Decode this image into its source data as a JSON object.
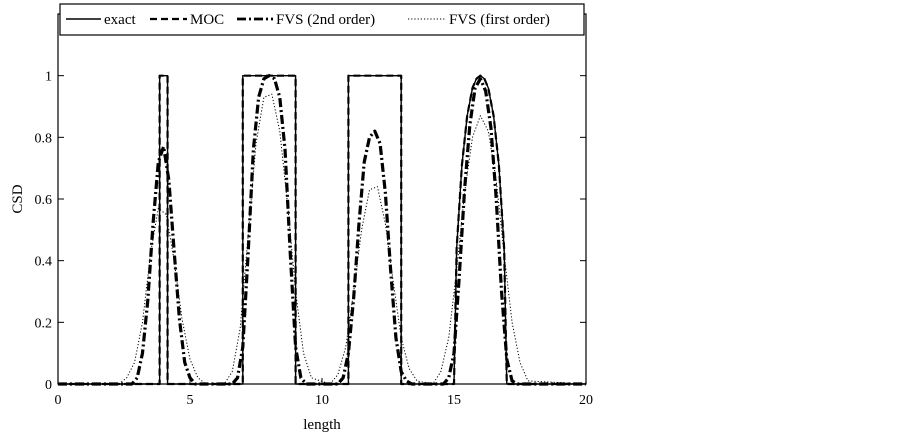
{
  "chart_data": {
    "type": "line",
    "title": "",
    "xlabel": "length",
    "ylabel": "CSD",
    "xlim": [
      0,
      20
    ],
    "ylim": [
      0,
      1.2
    ],
    "xticks": [
      0,
      5,
      10,
      15,
      20
    ],
    "yticks": [
      0,
      0.2,
      0.4,
      0.6,
      0.8,
      1
    ],
    "xtick_labels": [
      "0",
      "5",
      "10",
      "15",
      "20"
    ],
    "ytick_labels": [
      "0",
      "0.2",
      "0.4",
      "0.6",
      "0.8",
      "1"
    ],
    "legend_position": "top",
    "grid": false,
    "series": [
      {
        "name": "exact",
        "style": "solid",
        "x": [
          0,
          3.85,
          3.85,
          4.15,
          4.15,
          7.0,
          7.0,
          9.0,
          9.0,
          11.0,
          11.0,
          13.0,
          13.0,
          15.0,
          15.1,
          15.3,
          15.5,
          15.7,
          15.85,
          16.0,
          16.15,
          16.3,
          16.5,
          16.7,
          16.9,
          17.0,
          17.0,
          20
        ],
        "y": [
          0,
          0,
          1,
          1,
          0,
          0,
          1,
          1,
          0,
          0,
          1,
          1,
          0,
          0,
          0.44,
          0.71,
          0.87,
          0.96,
          0.99,
          1.0,
          0.99,
          0.96,
          0.87,
          0.71,
          0.44,
          0.0,
          0,
          0
        ]
      },
      {
        "name": "MOC",
        "style": "dashed",
        "x": [
          0,
          3.85,
          3.85,
          4.15,
          4.15,
          7.0,
          7.0,
          9.0,
          9.0,
          11.0,
          11.0,
          13.0,
          13.0,
          15.0,
          15.1,
          15.3,
          15.5,
          15.7,
          15.85,
          16.0,
          16.15,
          16.3,
          16.5,
          16.7,
          16.9,
          17.0,
          17.0,
          20
        ],
        "y": [
          0,
          0,
          1,
          1,
          0,
          0,
          1,
          1,
          0,
          0,
          1,
          1,
          0,
          0,
          0.44,
          0.71,
          0.87,
          0.96,
          0.99,
          1.0,
          0.99,
          0.96,
          0.87,
          0.71,
          0.44,
          0.0,
          0,
          0
        ]
      },
      {
        "name": "FVS (2nd order)",
        "style": "dashdot",
        "x": [
          0,
          2.8,
          3.0,
          3.2,
          3.4,
          3.6,
          3.8,
          4.0,
          4.2,
          4.4,
          4.6,
          4.8,
          5.0,
          5.2,
          6.6,
          6.8,
          7.0,
          7.2,
          7.4,
          7.6,
          7.8,
          8.0,
          8.2,
          8.4,
          8.6,
          8.8,
          9.0,
          9.2,
          9.4,
          10.6,
          10.8,
          11.0,
          11.2,
          11.4,
          11.6,
          11.8,
          12.0,
          12.2,
          12.4,
          12.6,
          12.8,
          13.0,
          13.2,
          13.4,
          14.6,
          14.8,
          15.0,
          15.2,
          15.4,
          15.6,
          15.8,
          16.0,
          16.2,
          16.4,
          16.6,
          16.8,
          17.0,
          17.2,
          17.4,
          20
        ],
        "y": [
          0,
          0,
          0.02,
          0.1,
          0.27,
          0.52,
          0.72,
          0.77,
          0.66,
          0.43,
          0.21,
          0.07,
          0.02,
          0,
          0,
          0.02,
          0.12,
          0.42,
          0.76,
          0.93,
          0.99,
          1.0,
          0.99,
          0.93,
          0.76,
          0.42,
          0.12,
          0.02,
          0,
          0,
          0.02,
          0.1,
          0.28,
          0.52,
          0.72,
          0.8,
          0.82,
          0.78,
          0.62,
          0.37,
          0.15,
          0.04,
          0.01,
          0,
          0,
          0.02,
          0.1,
          0.35,
          0.63,
          0.84,
          0.96,
          0.99,
          0.95,
          0.83,
          0.6,
          0.3,
          0.08,
          0.01,
          0,
          0
        ]
      },
      {
        "name": "FVS (first order)",
        "style": "dotted",
        "x": [
          0,
          2.3,
          2.6,
          2.9,
          3.2,
          3.5,
          3.8,
          4.1,
          4.4,
          4.7,
          5.0,
          5.3,
          5.6,
          6.3,
          6.6,
          6.9,
          7.2,
          7.5,
          7.8,
          8.1,
          8.4,
          8.7,
          9.0,
          9.3,
          9.6,
          10.3,
          10.6,
          10.9,
          11.2,
          11.5,
          11.8,
          12.1,
          12.4,
          12.7,
          13.0,
          13.3,
          13.6,
          14.2,
          14.5,
          14.8,
          15.1,
          15.4,
          15.7,
          16.0,
          16.3,
          16.6,
          16.9,
          17.2,
          17.5,
          17.8,
          20
        ],
        "y": [
          0,
          0,
          0.02,
          0.07,
          0.2,
          0.42,
          0.57,
          0.55,
          0.4,
          0.21,
          0.08,
          0.02,
          0,
          0,
          0.04,
          0.18,
          0.48,
          0.78,
          0.93,
          0.94,
          0.82,
          0.58,
          0.3,
          0.1,
          0.02,
          0,
          0.03,
          0.12,
          0.3,
          0.5,
          0.63,
          0.64,
          0.52,
          0.33,
          0.15,
          0.05,
          0.01,
          0,
          0.04,
          0.15,
          0.37,
          0.62,
          0.8,
          0.87,
          0.82,
          0.66,
          0.42,
          0.2,
          0.07,
          0.01,
          0
        ]
      }
    ]
  }
}
